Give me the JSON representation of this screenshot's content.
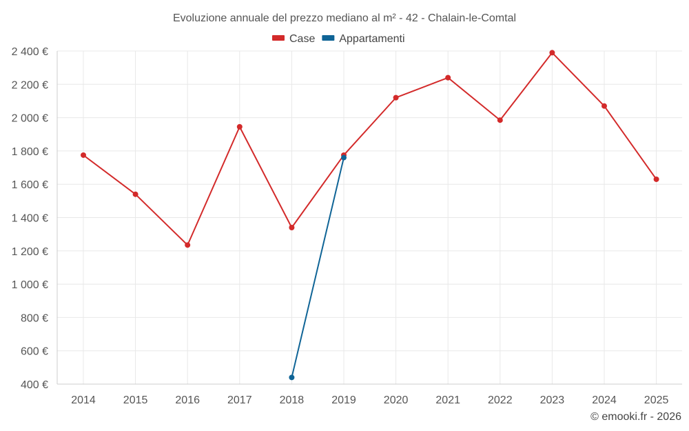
{
  "chart_data": {
    "type": "line",
    "title": "Evoluzione annuale del prezzo mediano al m² - 42 - Chalain-le-Comtal",
    "xlabel": "",
    "ylabel": "",
    "categories": [
      "2014",
      "2015",
      "2016",
      "2017",
      "2018",
      "2019",
      "2020",
      "2021",
      "2022",
      "2023",
      "2024",
      "2025"
    ],
    "ylim": [
      400,
      2400
    ],
    "y_ticks": [
      400,
      600,
      800,
      1000,
      1200,
      1400,
      1600,
      1800,
      2000,
      2200,
      2400
    ],
    "y_tick_labels": [
      "400 €",
      "600 €",
      "800 €",
      "1 000 €",
      "1 200 €",
      "1 400 €",
      "1 600 €",
      "1 800 €",
      "2 000 €",
      "2 200 €",
      "2 400 €"
    ],
    "legend_position": "top-center",
    "grid": true,
    "series": [
      {
        "name": "Case",
        "color": "#d32a2a",
        "values": [
          1775,
          1540,
          1235,
          1945,
          1340,
          1775,
          2120,
          2240,
          1985,
          2390,
          2070,
          1630
        ]
      },
      {
        "name": "Appartamenti",
        "color": "#0f6496",
        "values": [
          null,
          null,
          null,
          null,
          440,
          1760,
          null,
          null,
          null,
          null,
          null,
          null
        ]
      }
    ]
  },
  "footer": {
    "credit": "© emooki.fr - 2026"
  }
}
